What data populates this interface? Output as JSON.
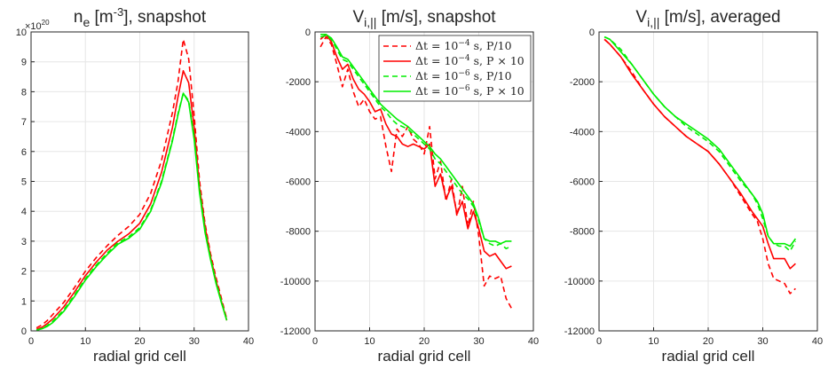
{
  "colors": {
    "red": "#ff0000",
    "green": "#00ee00",
    "axis": "#262626",
    "grid": "#e6e6e6"
  },
  "chart_data": [
    {
      "type": "line",
      "title": {
        "base": "n",
        "sub": "e",
        "mid": " [m",
        "sup": "-3",
        "post": "], snapshot"
      },
      "xlabel": "radial grid cell",
      "ylabel": "",
      "xlim": [
        0,
        40
      ],
      "ylim": [
        0,
        10
      ],
      "grid": true,
      "xticks": [
        "0",
        "10",
        "20",
        "30",
        "40"
      ],
      "yticks": [
        "0",
        "1",
        "2",
        "3",
        "4",
        "5",
        "6",
        "7",
        "8",
        "9",
        "10"
      ],
      "y_exponent": {
        "base": "×10",
        "exp": "20"
      },
      "series": [
        {
          "style": "red-dashed",
          "x": [
            1,
            2,
            3,
            4,
            6,
            8,
            10,
            12,
            14,
            16,
            18,
            20,
            22,
            24,
            26,
            27,
            28,
            29,
            30,
            31,
            32,
            33,
            34,
            35,
            36
          ],
          "y": [
            0.1,
            0.2,
            0.35,
            0.55,
            0.95,
            1.45,
            2.0,
            2.45,
            2.85,
            3.2,
            3.5,
            3.9,
            4.6,
            5.7,
            7.3,
            8.3,
            9.75,
            9.1,
            7.2,
            5.0,
            3.6,
            2.6,
            1.8,
            1.1,
            0.4
          ]
        },
        {
          "style": "red-solid",
          "x": [
            1,
            2,
            3,
            4,
            6,
            8,
            10,
            12,
            14,
            16,
            18,
            20,
            22,
            24,
            26,
            27,
            28,
            29,
            30,
            31,
            32,
            33,
            34,
            35,
            36
          ],
          "y": [
            0.05,
            0.12,
            0.25,
            0.4,
            0.8,
            1.3,
            1.85,
            2.3,
            2.7,
            3.0,
            3.25,
            3.6,
            4.25,
            5.3,
            6.8,
            7.8,
            8.7,
            8.3,
            6.8,
            4.8,
            3.5,
            2.5,
            1.7,
            1.0,
            0.35
          ]
        },
        {
          "style": "green-dashed",
          "x": [
            1,
            2,
            3,
            4,
            6,
            8,
            10,
            12,
            14,
            16,
            18,
            20,
            22,
            24,
            26,
            27,
            28,
            29,
            30,
            31,
            32,
            33,
            34,
            35,
            36
          ],
          "y": [
            0.03,
            0.08,
            0.18,
            0.32,
            0.7,
            1.2,
            1.75,
            2.2,
            2.6,
            2.95,
            3.15,
            3.45,
            4.05,
            5.0,
            6.4,
            7.25,
            7.95,
            7.7,
            6.5,
            4.7,
            3.4,
            2.45,
            1.65,
            1.0,
            0.35
          ]
        },
        {
          "style": "green-solid",
          "x": [
            1,
            2,
            3,
            4,
            6,
            8,
            10,
            12,
            14,
            16,
            18,
            20,
            22,
            24,
            26,
            27,
            28,
            29,
            30,
            31,
            32,
            33,
            34,
            35,
            36
          ],
          "y": [
            0.02,
            0.07,
            0.15,
            0.28,
            0.65,
            1.15,
            1.7,
            2.15,
            2.55,
            2.9,
            3.1,
            3.4,
            4.0,
            4.95,
            6.35,
            7.2,
            7.95,
            7.65,
            6.4,
            4.6,
            3.3,
            2.4,
            1.6,
            0.95,
            0.35
          ]
        }
      ]
    },
    {
      "type": "line",
      "title": {
        "base": "V",
        "sub": "i,||",
        "mid": " [m/s], snapshot",
        "sup": "",
        "post": ""
      },
      "xlabel": "radial grid cell",
      "ylabel": "",
      "xlim": [
        0,
        40
      ],
      "ylim": [
        -12000,
        0
      ],
      "grid": true,
      "xticks": [
        "0",
        "10",
        "20",
        "30",
        "40"
      ],
      "yticks": [
        "-12000",
        "-10000",
        "-8000",
        "-6000",
        "-4000",
        "-2000",
        "0"
      ],
      "legend": {
        "position": "top-right",
        "entries": [
          {
            "style": "red-dashed",
            "label": "Δt = 10",
            "sup": "−4",
            "post": " s, P/10"
          },
          {
            "style": "red-solid",
            "label": "Δt = 10",
            "sup": "−4",
            "post": " s, P × 10"
          },
          {
            "style": "green-dashed",
            "label": "Δt = 10",
            "sup": "−6",
            "post": " s, P/10"
          },
          {
            "style": "green-solid",
            "label": "Δt = 10",
            "sup": "−6",
            "post": " s, P × 10"
          }
        ]
      },
      "series": [
        {
          "style": "red-dashed",
          "x": [
            1,
            2,
            3,
            4,
            5,
            6,
            7,
            8,
            9,
            10,
            11,
            12,
            13,
            14,
            15,
            16,
            17,
            18,
            19,
            20,
            21,
            22,
            23,
            24,
            25,
            26,
            27,
            28,
            29,
            30,
            31,
            32,
            33,
            34,
            35,
            36
          ],
          "y": [
            -600,
            -200,
            -500,
            -1300,
            -2200,
            -1500,
            -2400,
            -3000,
            -2700,
            -3200,
            -3500,
            -3400,
            -4600,
            -5600,
            -3900,
            -4200,
            -3800,
            -4300,
            -4500,
            -4900,
            -3800,
            -5900,
            -5200,
            -6800,
            -5900,
            -7400,
            -6200,
            -7800,
            -6800,
            -8200,
            -10200,
            -9800,
            -9900,
            -9800,
            -10700,
            -11100
          ]
        },
        {
          "style": "red-solid",
          "x": [
            1,
            2,
            3,
            4,
            5,
            6,
            7,
            8,
            9,
            10,
            11,
            12,
            13,
            14,
            15,
            16,
            17,
            18,
            19,
            20,
            21,
            22,
            23,
            24,
            25,
            26,
            27,
            28,
            29,
            30,
            31,
            32,
            33,
            34,
            35,
            36
          ],
          "y": [
            -300,
            -100,
            -400,
            -1000,
            -1500,
            -1300,
            -1900,
            -2300,
            -2500,
            -2800,
            -3200,
            -3100,
            -3700,
            -4100,
            -4200,
            -4500,
            -4600,
            -4500,
            -4600,
            -4700,
            -4500,
            -6200,
            -5700,
            -6700,
            -6200,
            -7300,
            -6800,
            -7900,
            -7200,
            -7900,
            -8800,
            -9000,
            -8900,
            -9200,
            -9500,
            -9400
          ]
        },
        {
          "style": "green-dashed",
          "x": [
            1,
            2,
            3,
            4,
            5,
            6,
            7,
            8,
            9,
            10,
            11,
            12,
            13,
            14,
            15,
            16,
            17,
            18,
            19,
            20,
            21,
            22,
            23,
            24,
            25,
            26,
            27,
            28,
            29,
            30,
            31,
            32,
            33,
            34,
            35,
            36
          ],
          "y": [
            -200,
            -150,
            -300,
            -700,
            -1100,
            -1200,
            -1500,
            -1800,
            -2100,
            -2400,
            -2700,
            -3000,
            -3200,
            -3500,
            -3700,
            -3800,
            -3900,
            -4100,
            -4300,
            -4500,
            -4700,
            -5100,
            -5300,
            -5600,
            -5900,
            -6200,
            -6500,
            -6700,
            -7000,
            -7600,
            -8300,
            -8500,
            -8600,
            -8500,
            -8700,
            -8600
          ]
        },
        {
          "style": "green-solid",
          "x": [
            1,
            2,
            3,
            4,
            5,
            6,
            7,
            8,
            9,
            10,
            11,
            12,
            13,
            14,
            15,
            16,
            17,
            18,
            19,
            20,
            21,
            22,
            23,
            24,
            25,
            26,
            27,
            28,
            29,
            30,
            31,
            32,
            33,
            34,
            35,
            36
          ],
          "y": [
            -100,
            -100,
            -250,
            -600,
            -1000,
            -1100,
            -1400,
            -1700,
            -2000,
            -2300,
            -2600,
            -2900,
            -3100,
            -3300,
            -3500,
            -3650,
            -3800,
            -4000,
            -4200,
            -4400,
            -4600,
            -4900,
            -5100,
            -5400,
            -5700,
            -6000,
            -6300,
            -6600,
            -6900,
            -7500,
            -8300,
            -8400,
            -8400,
            -8500,
            -8400,
            -8400
          ]
        }
      ]
    },
    {
      "type": "line",
      "title": {
        "base": "V",
        "sub": "i,||",
        "mid": " [m/s], averaged",
        "sup": "",
        "post": ""
      },
      "xlabel": "radial grid cell",
      "ylabel": "",
      "xlim": [
        0,
        40
      ],
      "ylim": [
        -12000,
        0
      ],
      "grid": true,
      "xticks": [
        "0",
        "10",
        "20",
        "30",
        "40"
      ],
      "yticks": [
        "-12000",
        "-10000",
        "-8000",
        "-6000",
        "-4000",
        "-2000",
        "0"
      ],
      "series": [
        {
          "style": "red-dashed",
          "x": [
            1,
            2,
            4,
            6,
            8,
            10,
            12,
            14,
            16,
            18,
            20,
            22,
            24,
            26,
            28,
            29,
            30,
            31,
            32,
            33,
            34,
            35,
            36
          ],
          "y": [
            -300,
            -500,
            -1000,
            -1600,
            -2300,
            -2900,
            -3400,
            -3800,
            -4200,
            -4500,
            -4800,
            -5300,
            -5900,
            -6600,
            -7300,
            -7600,
            -8300,
            -9300,
            -9900,
            -10000,
            -10100,
            -10500,
            -10300
          ]
        },
        {
          "style": "red-solid",
          "x": [
            1,
            2,
            4,
            6,
            8,
            10,
            12,
            14,
            16,
            18,
            20,
            22,
            24,
            26,
            28,
            29,
            30,
            31,
            32,
            33,
            34,
            35,
            36
          ],
          "y": [
            -300,
            -500,
            -1000,
            -1700,
            -2300,
            -2900,
            -3400,
            -3800,
            -4200,
            -4500,
            -4800,
            -5300,
            -5900,
            -6500,
            -7200,
            -7500,
            -7800,
            -8500,
            -9100,
            -9100,
            -9100,
            -9500,
            -9300
          ]
        },
        {
          "style": "green-dashed",
          "x": [
            1,
            2,
            4,
            6,
            8,
            10,
            12,
            14,
            16,
            18,
            20,
            22,
            24,
            26,
            28,
            29,
            30,
            31,
            32,
            33,
            34,
            35,
            36
          ],
          "y": [
            -200,
            -300,
            -700,
            -1300,
            -1900,
            -2500,
            -3000,
            -3400,
            -3800,
            -4100,
            -4400,
            -4800,
            -5400,
            -6000,
            -6500,
            -6900,
            -7500,
            -8200,
            -8500,
            -8600,
            -8600,
            -8800,
            -8400
          ]
        },
        {
          "style": "green-solid",
          "x": [
            1,
            2,
            4,
            6,
            8,
            10,
            12,
            14,
            16,
            18,
            20,
            22,
            24,
            26,
            28,
            29,
            30,
            31,
            32,
            33,
            34,
            35,
            36
          ],
          "y": [
            -200,
            -300,
            -800,
            -1300,
            -1900,
            -2500,
            -3000,
            -3400,
            -3700,
            -4000,
            -4300,
            -4700,
            -5300,
            -5900,
            -6500,
            -6800,
            -7300,
            -8200,
            -8500,
            -8500,
            -8500,
            -8600,
            -8300
          ]
        }
      ]
    }
  ]
}
